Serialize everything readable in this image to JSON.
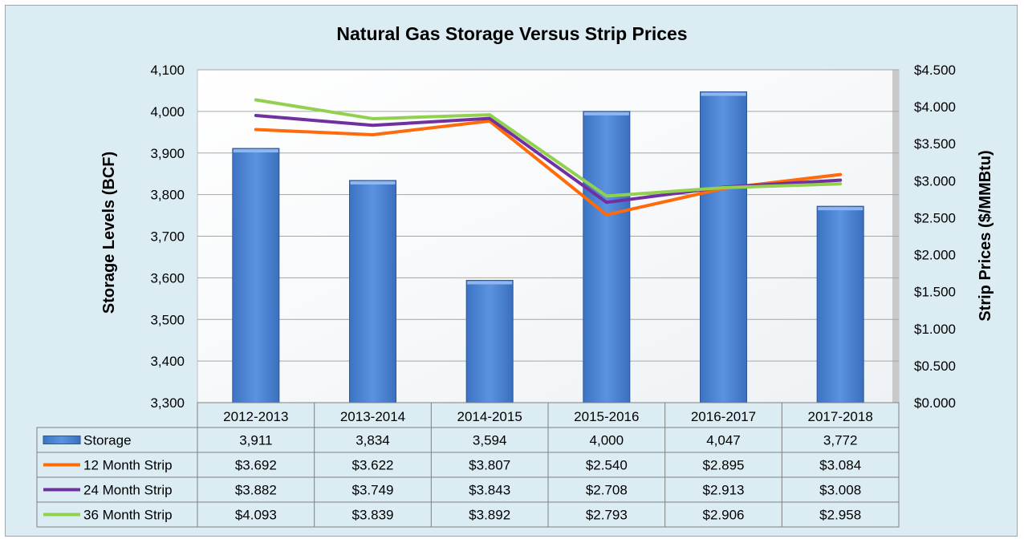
{
  "chart_data": {
    "type": "bar",
    "title": "Natural Gas Storage Versus Strip Prices",
    "categories": [
      "2012-2013",
      "2013-2014",
      "2014-2015",
      "2015-2016",
      "2016-2017",
      "2017-2018"
    ],
    "ylabel": "Storage Levels (BCF)",
    "y2label": "Strip Prices ($/MMBtu)",
    "ylim": [
      3300,
      4100
    ],
    "y2lim": [
      0,
      4.5
    ],
    "yticks": [
      "3,300",
      "3,400",
      "3,500",
      "3,600",
      "3,700",
      "3,800",
      "3,900",
      "4,000",
      "4,100"
    ],
    "y2ticks": [
      "$0.000",
      "$0.500",
      "$1.000",
      "$1.500",
      "$2.000",
      "$2.500",
      "$3.000",
      "$3.500",
      "$4.000",
      "$4.500"
    ],
    "grid": true,
    "legend": "data-table",
    "series": [
      {
        "name": "Storage",
        "type": "bar",
        "axis": "left",
        "color": "#4f86d8",
        "values": [
          3911,
          3834,
          3594,
          4000,
          4047,
          3772
        ],
        "labels": [
          "3,911",
          "3,834",
          "3,594",
          "4,000",
          "4,047",
          "3,772"
        ]
      },
      {
        "name": "12 Month Strip",
        "type": "line",
        "axis": "right",
        "color": "#ff6a0a",
        "values": [
          3.692,
          3.622,
          3.807,
          2.54,
          2.895,
          3.084
        ],
        "labels": [
          "$3.692",
          "$3.622",
          "$3.807",
          "$2.540",
          "$2.895",
          "$3.084"
        ]
      },
      {
        "name": "24 Month Strip",
        "type": "line",
        "axis": "right",
        "color": "#7030a0",
        "values": [
          3.882,
          3.749,
          3.843,
          2.708,
          2.913,
          3.008
        ],
        "labels": [
          "$3.882",
          "$3.749",
          "$3.843",
          "$2.708",
          "$2.913",
          "$3.008"
        ]
      },
      {
        "name": "36 Month Strip",
        "type": "line",
        "axis": "right",
        "color": "#92d050",
        "values": [
          4.093,
          3.839,
          3.892,
          2.793,
          2.906,
          2.958
        ],
        "labels": [
          "$4.093",
          "$3.839",
          "$3.892",
          "$2.793",
          "$2.906",
          "$2.958"
        ]
      }
    ]
  }
}
